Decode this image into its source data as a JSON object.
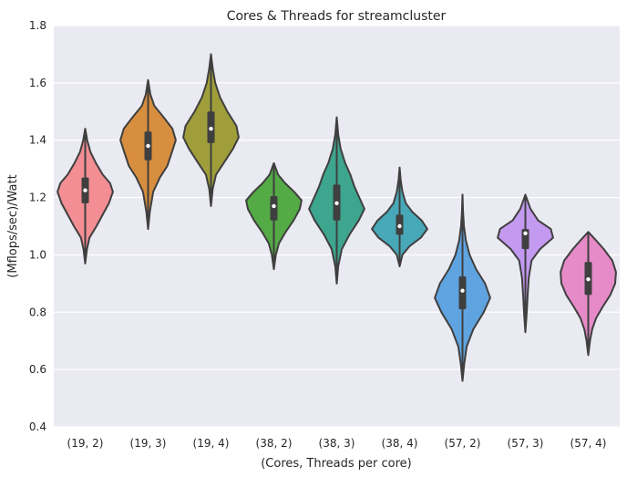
{
  "chart_data": {
    "type": "violin",
    "title": "Cores & Threads for streamcluster",
    "xlabel": "(Cores, Threads per core)",
    "ylabel": "(Mflops/sec)/Watt",
    "ylim": [
      0.4,
      1.8
    ],
    "yticks": [
      "0.4",
      "0.6",
      "0.8",
      "1.0",
      "1.2",
      "1.4",
      "1.6",
      "1.8"
    ],
    "grid": true,
    "categories": [
      "(19, 2)",
      "(19, 3)",
      "(19, 4)",
      "(38, 2)",
      "(38, 3)",
      "(38, 4)",
      "(57, 2)",
      "(57, 3)",
      "(57, 4)"
    ],
    "series": [
      {
        "category": "(19, 2)",
        "color": "#f28e94",
        "min": 0.97,
        "max": 1.44,
        "q1": 1.18,
        "median": 1.225,
        "q3": 1.27,
        "profile": [
          [
            0.97,
            0.0
          ],
          [
            1.02,
            0.06
          ],
          [
            1.06,
            0.15
          ],
          [
            1.1,
            0.4
          ],
          [
            1.14,
            0.62
          ],
          [
            1.18,
            0.84
          ],
          [
            1.22,
            0.98
          ],
          [
            1.25,
            0.88
          ],
          [
            1.28,
            0.62
          ],
          [
            1.32,
            0.38
          ],
          [
            1.36,
            0.18
          ],
          [
            1.4,
            0.07
          ],
          [
            1.44,
            0.0
          ]
        ]
      },
      {
        "category": "(19, 3)",
        "color": "#d78e3e",
        "min": 1.09,
        "max": 1.61,
        "q1": 1.33,
        "median": 1.38,
        "q3": 1.43,
        "profile": [
          [
            1.09,
            0.0
          ],
          [
            1.15,
            0.06
          ],
          [
            1.22,
            0.18
          ],
          [
            1.27,
            0.42
          ],
          [
            1.31,
            0.68
          ],
          [
            1.36,
            0.85
          ],
          [
            1.4,
            0.98
          ],
          [
            1.44,
            0.86
          ],
          [
            1.48,
            0.55
          ],
          [
            1.52,
            0.22
          ],
          [
            1.56,
            0.08
          ],
          [
            1.61,
            0.0
          ]
        ]
      },
      {
        "category": "(19, 4)",
        "color": "#9f9e3a",
        "min": 1.17,
        "max": 1.7,
        "q1": 1.39,
        "median": 1.44,
        "q3": 1.5,
        "profile": [
          [
            1.17,
            0.0
          ],
          [
            1.23,
            0.06
          ],
          [
            1.28,
            0.18
          ],
          [
            1.32,
            0.45
          ],
          [
            1.37,
            0.78
          ],
          [
            1.41,
            0.98
          ],
          [
            1.45,
            0.9
          ],
          [
            1.5,
            0.58
          ],
          [
            1.55,
            0.32
          ],
          [
            1.6,
            0.15
          ],
          [
            1.65,
            0.06
          ],
          [
            1.7,
            0.0
          ]
        ]
      },
      {
        "category": "(38, 2)",
        "color": "#54aa45",
        "min": 0.95,
        "max": 1.32,
        "q1": 1.12,
        "median": 1.17,
        "q3": 1.205,
        "profile": [
          [
            0.95,
            0.0
          ],
          [
            1.0,
            0.07
          ],
          [
            1.04,
            0.18
          ],
          [
            1.08,
            0.42
          ],
          [
            1.12,
            0.7
          ],
          [
            1.16,
            0.92
          ],
          [
            1.19,
            0.98
          ],
          [
            1.22,
            0.72
          ],
          [
            1.25,
            0.4
          ],
          [
            1.28,
            0.15
          ],
          [
            1.32,
            0.0
          ]
        ]
      },
      {
        "category": "(38, 3)",
        "color": "#3ea58e",
        "min": 0.9,
        "max": 1.48,
        "q1": 1.12,
        "median": 1.18,
        "q3": 1.245,
        "profile": [
          [
            0.9,
            0.0
          ],
          [
            0.96,
            0.05
          ],
          [
            1.02,
            0.18
          ],
          [
            1.07,
            0.45
          ],
          [
            1.12,
            0.78
          ],
          [
            1.16,
            0.98
          ],
          [
            1.2,
            0.8
          ],
          [
            1.24,
            0.62
          ],
          [
            1.28,
            0.48
          ],
          [
            1.32,
            0.3
          ],
          [
            1.37,
            0.14
          ],
          [
            1.42,
            0.05
          ],
          [
            1.48,
            0.0
          ]
        ]
      },
      {
        "category": "(38, 4)",
        "color": "#47a8b7",
        "min": 0.96,
        "max": 1.305,
        "q1": 1.07,
        "median": 1.1,
        "q3": 1.14,
        "profile": [
          [
            0.96,
            0.0
          ],
          [
            1.0,
            0.1
          ],
          [
            1.03,
            0.35
          ],
          [
            1.06,
            0.75
          ],
          [
            1.09,
            0.98
          ],
          [
            1.12,
            0.78
          ],
          [
            1.15,
            0.45
          ],
          [
            1.18,
            0.22
          ],
          [
            1.22,
            0.1
          ],
          [
            1.26,
            0.04
          ],
          [
            1.305,
            0.0
          ]
        ]
      },
      {
        "category": "(57, 2)",
        "color": "#5fa4e0",
        "min": 0.56,
        "max": 1.21,
        "q1": 0.81,
        "median": 0.875,
        "q3": 0.925,
        "profile": [
          [
            0.56,
            0.0
          ],
          [
            0.62,
            0.06
          ],
          [
            0.68,
            0.15
          ],
          [
            0.74,
            0.38
          ],
          [
            0.8,
            0.75
          ],
          [
            0.85,
            0.98
          ],
          [
            0.9,
            0.8
          ],
          [
            0.95,
            0.48
          ],
          [
            1.0,
            0.25
          ],
          [
            1.05,
            0.12
          ],
          [
            1.1,
            0.05
          ],
          [
            1.15,
            0.02
          ],
          [
            1.21,
            0.0
          ]
        ]
      },
      {
        "category": "(57, 3)",
        "color": "#c49af0",
        "min": 0.73,
        "max": 1.21,
        "q1": 1.02,
        "median": 1.075,
        "q3": 1.09,
        "profile": [
          [
            0.73,
            0.0
          ],
          [
            0.8,
            0.05
          ],
          [
            0.86,
            0.08
          ],
          [
            0.92,
            0.12
          ],
          [
            0.98,
            0.22
          ],
          [
            1.02,
            0.52
          ],
          [
            1.06,
            0.98
          ],
          [
            1.09,
            0.9
          ],
          [
            1.12,
            0.45
          ],
          [
            1.16,
            0.18
          ],
          [
            1.21,
            0.0
          ]
        ]
      },
      {
        "category": "(57, 4)",
        "color": "#e68ac8",
        "min": 0.65,
        "max": 1.08,
        "q1": 0.86,
        "median": 0.915,
        "q3": 0.975,
        "profile": [
          [
            0.65,
            0.0
          ],
          [
            0.7,
            0.06
          ],
          [
            0.74,
            0.14
          ],
          [
            0.78,
            0.28
          ],
          [
            0.82,
            0.52
          ],
          [
            0.86,
            0.78
          ],
          [
            0.9,
            0.95
          ],
          [
            0.94,
            0.98
          ],
          [
            0.98,
            0.85
          ],
          [
            1.02,
            0.55
          ],
          [
            1.05,
            0.28
          ],
          [
            1.08,
            0.0
          ]
        ]
      }
    ]
  }
}
